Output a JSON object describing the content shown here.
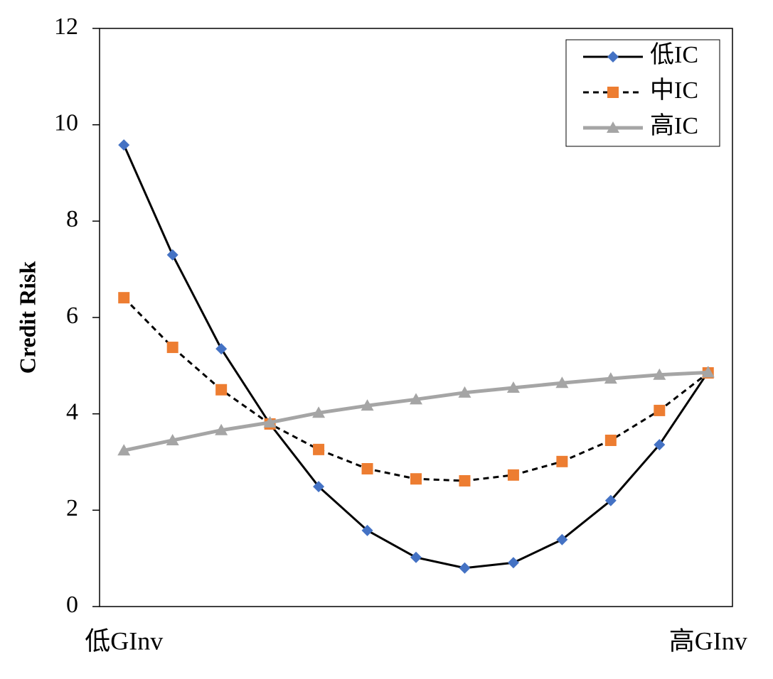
{
  "chart_data": {
    "type": "line",
    "y_label": "Credit Risk",
    "categories": [
      "低GInv",
      null,
      null,
      null,
      null,
      null,
      null,
      null,
      null,
      null,
      null,
      null,
      "高GInv"
    ],
    "series": [
      {
        "name": "低IC",
        "color": "#000000",
        "marker_color": "#4472c4",
        "marker": "diamond",
        "dash": false,
        "values": [
          9.58,
          7.3,
          5.35,
          3.79,
          2.49,
          1.58,
          1.02,
          0.8,
          0.91,
          1.39,
          2.2,
          3.36,
          4.87
        ]
      },
      {
        "name": "中IC",
        "color": "#000000",
        "marker_color": "#ed7d31",
        "marker": "square",
        "dash": true,
        "values": [
          6.41,
          5.38,
          4.5,
          3.79,
          3.26,
          2.86,
          2.65,
          2.61,
          2.73,
          3.01,
          3.45,
          4.07,
          4.85
        ]
      },
      {
        "name": "高IC",
        "color": "#a5a5a5",
        "marker_color": "#a5a5a5",
        "marker": "triangle",
        "dash": false,
        "values": [
          3.24,
          3.45,
          3.66,
          3.82,
          4.02,
          4.17,
          4.3,
          4.44,
          4.54,
          4.64,
          4.73,
          4.81,
          4.86
        ]
      }
    ],
    "ylim": [
      0,
      12
    ],
    "yticks": [
      0,
      2,
      4,
      6,
      8,
      10,
      12
    ],
    "grid": false,
    "legend": "upper right"
  }
}
